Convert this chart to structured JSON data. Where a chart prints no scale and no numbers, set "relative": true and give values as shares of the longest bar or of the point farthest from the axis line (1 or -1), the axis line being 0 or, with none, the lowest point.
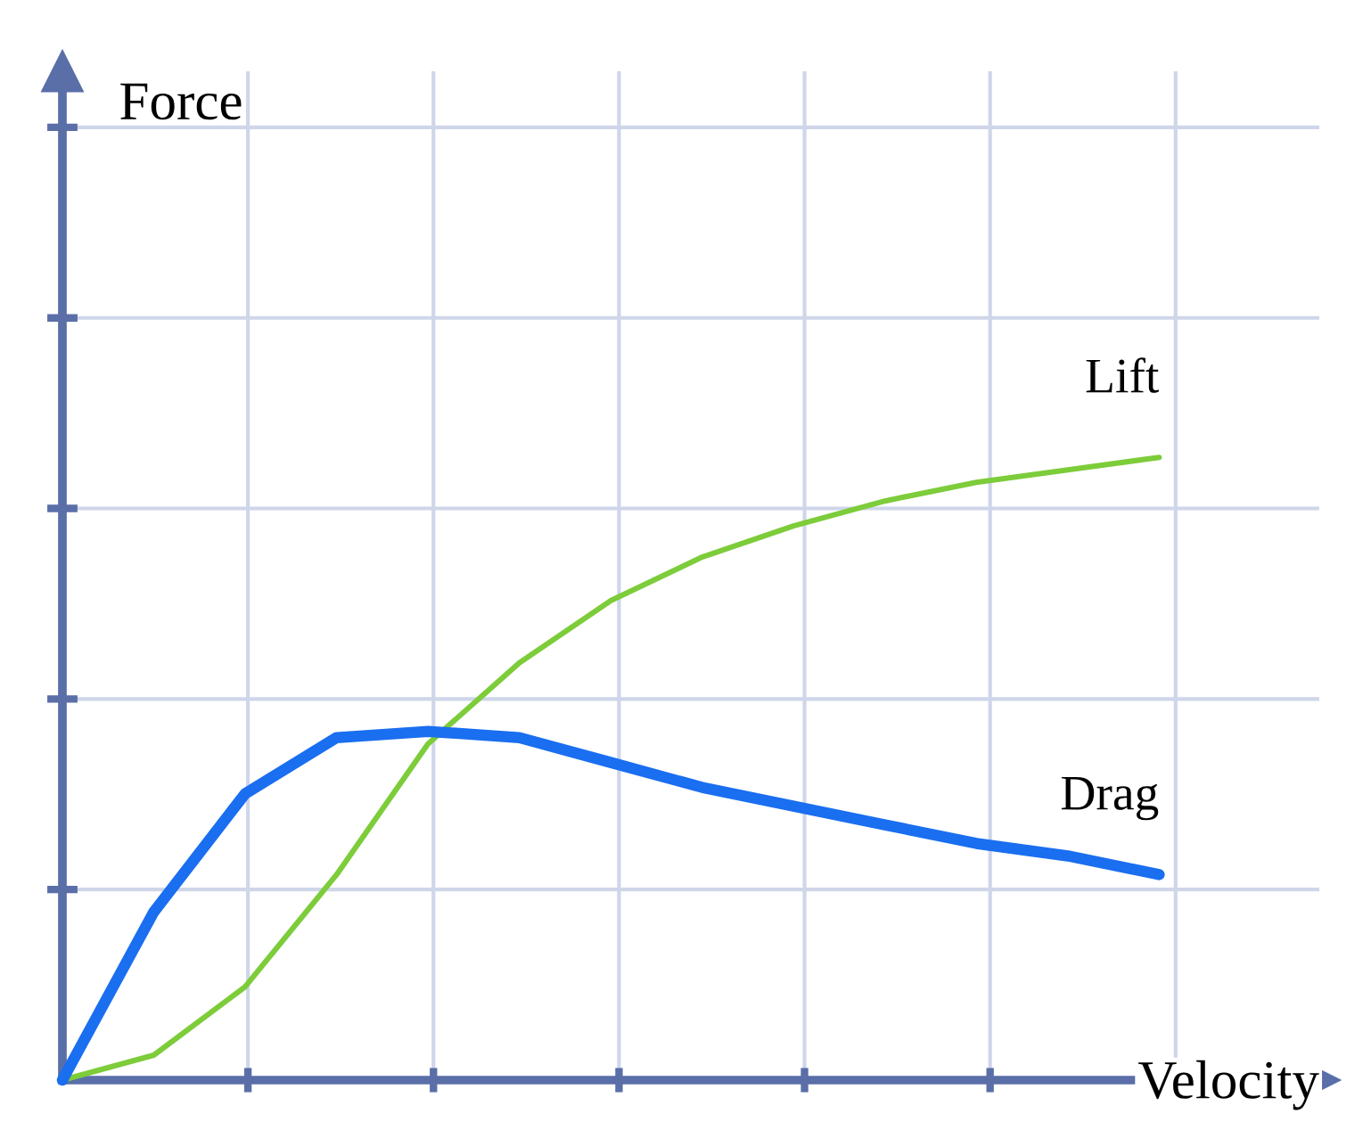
{
  "chart_data": {
    "type": "line",
    "relative": true,
    "xlabel": "Velocity",
    "annotations": [
      "Force"
    ],
    "categories": [
      null,
      null,
      null,
      null,
      null,
      null,
      null,
      null,
      null,
      null,
      null,
      null,
      null
    ],
    "series": [
      {
        "name": "Lift",
        "color": "#7dcc3a",
        "values": [
          0,
          0.04,
          0.15,
          0.33,
          0.54,
          0.67,
          0.77,
          0.84,
          0.89,
          0.93,
          0.96,
          0.98,
          1
        ]
      },
      {
        "name": "Drag",
        "color": "#1a6ef0",
        "values": [
          0,
          0.27,
          0.46,
          0.55,
          0.56,
          0.55,
          0.51,
          0.47,
          0.44,
          0.41,
          0.38,
          0.36,
          0.33
        ]
      }
    ],
    "grid": true,
    "tick_labels": false,
    "legend": false,
    "marker": "none",
    "line_style": "solid"
  }
}
